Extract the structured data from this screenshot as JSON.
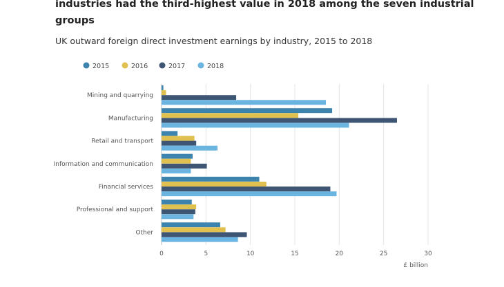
{
  "chart_data": {
    "type": "bar",
    "orientation": "horizontal",
    "title": "industries had the third-highest value in 2018 among the seven industrial groups",
    "subtitle": "UK outward foreign direct investment earnings by industry, 2015 to 2018",
    "xlabel": "£ billion",
    "xlim": [
      0,
      30
    ],
    "xticks": [
      0,
      5,
      10,
      15,
      20,
      25,
      30
    ],
    "grid": true,
    "legend_position": "top-left",
    "categories": [
      "Mining and quarrying",
      "Manufacturing",
      "Retail and transport",
      "Information and communication",
      "Financial services",
      "Professional and support",
      "Other"
    ],
    "series": [
      {
        "name": "2015",
        "color": "#3c83ad",
        "values": [
          0.2,
          19.2,
          1.8,
          3.5,
          11.0,
          3.4,
          6.6
        ]
      },
      {
        "name": "2016",
        "color": "#e0c04f",
        "values": [
          0.5,
          15.4,
          3.7,
          3.3,
          11.8,
          3.9,
          7.2
        ]
      },
      {
        "name": "2017",
        "color": "#3e5674",
        "values": [
          8.4,
          26.5,
          3.9,
          5.1,
          19.0,
          3.8,
          9.6
        ]
      },
      {
        "name": "2018",
        "color": "#6cb4e0",
        "values": [
          18.5,
          21.1,
          6.3,
          3.3,
          19.7,
          3.6,
          8.6
        ]
      }
    ]
  }
}
